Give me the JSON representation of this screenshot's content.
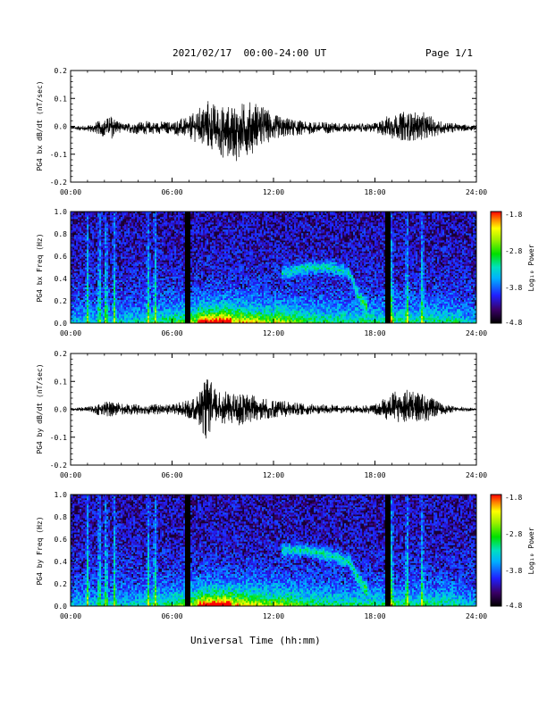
{
  "header": {
    "title": "2021/02/17  00:00-24:00 UT",
    "page": "Page 1/1"
  },
  "xlabel": "Universal Time (hh:mm)",
  "colorbar": {
    "label": "Log₁₀ Power",
    "ticks": [
      "-1.8",
      "-2.8",
      "-3.8",
      "-4.8"
    ],
    "range": [
      -4.8,
      -1.8
    ]
  },
  "chart_data": [
    {
      "type": "line",
      "ylabel": "PG4 bx dB/dt (nT/sec)",
      "xlim": [
        0,
        24
      ],
      "ylim": [
        -0.2,
        0.2
      ],
      "xticks": [
        "00:00",
        "06:00",
        "12:00",
        "18:00",
        "24:00"
      ],
      "yticks": [
        "0.2",
        "0.1",
        "0.0",
        "-0.1",
        "-0.2"
      ],
      "envelope": {
        "x_hours": [
          0,
          1,
          2,
          2.5,
          3,
          4,
          5,
          6,
          7,
          7.5,
          8,
          8.5,
          9,
          10,
          11,
          12,
          13,
          14,
          15,
          16,
          17,
          18,
          19,
          20,
          21,
          22,
          23,
          24
        ],
        "upper": [
          0.0,
          0.005,
          0.03,
          0.05,
          0.01,
          0.02,
          0.02,
          0.02,
          0.04,
          0.06,
          0.11,
          0.09,
          0.08,
          0.09,
          0.1,
          0.05,
          0.03,
          0.02,
          0.02,
          0.015,
          0.01,
          0.015,
          0.05,
          0.06,
          0.05,
          0.02,
          0.01,
          0.005
        ],
        "lower": [
          -0.01,
          -0.02,
          -0.04,
          -0.05,
          -0.02,
          -0.03,
          -0.03,
          -0.03,
          -0.05,
          -0.06,
          -0.11,
          -0.1,
          -0.12,
          -0.13,
          -0.09,
          -0.06,
          -0.04,
          -0.03,
          -0.03,
          -0.025,
          -0.02,
          -0.025,
          -0.05,
          -0.06,
          -0.05,
          -0.03,
          -0.02,
          -0.015
        ]
      }
    },
    {
      "type": "heatmap",
      "ylabel": "PG4 bx Freq (Hz)",
      "xlim": [
        0,
        24
      ],
      "ylim": [
        0,
        1.0
      ],
      "xticks": [
        "00:00",
        "06:00",
        "12:00",
        "18:00",
        "24:00"
      ],
      "yticks": [
        "1.0",
        "0.8",
        "0.6",
        "0.4",
        "0.2",
        "0.0"
      ],
      "gaps_hours": [
        6.9,
        18.8
      ],
      "bursts_hours": [
        1.0,
        1.7,
        2.1,
        2.6,
        4.6,
        5.0,
        19.0,
        19.9,
        20.8
      ],
      "emission_band": {
        "x_hours": [
          12.5,
          14,
          15.5,
          16.5,
          17,
          17.5
        ],
        "freq_hz": [
          0.45,
          0.5,
          0.5,
          0.45,
          0.25,
          0.15
        ]
      }
    },
    {
      "type": "line",
      "ylabel": "PG4 by dB/dt (nT/sec)",
      "xlim": [
        0,
        24
      ],
      "ylim": [
        -0.2,
        0.2
      ],
      "xticks": [
        "00:00",
        "06:00",
        "12:00",
        "18:00",
        "24:00"
      ],
      "yticks": [
        "0.2",
        "0.1",
        "0.0",
        "-0.1",
        "-0.2"
      ],
      "envelope": {
        "x_hours": [
          0,
          1,
          2,
          2.5,
          3,
          4,
          5,
          6,
          7,
          7.5,
          8,
          8.5,
          9,
          10,
          11,
          12,
          13,
          14,
          15,
          16,
          17,
          18,
          19,
          20,
          21,
          22,
          23,
          24
        ],
        "upper": [
          0.005,
          0.01,
          0.03,
          0.04,
          0.02,
          0.02,
          0.02,
          0.02,
          0.04,
          0.06,
          0.13,
          0.09,
          0.07,
          0.06,
          0.06,
          0.04,
          0.03,
          0.02,
          0.02,
          0.015,
          0.015,
          0.02,
          0.07,
          0.08,
          0.06,
          0.02,
          0.01,
          0.005
        ],
        "lower": [
          -0.005,
          -0.01,
          -0.03,
          -0.03,
          -0.02,
          -0.02,
          -0.02,
          -0.02,
          -0.04,
          -0.06,
          -0.12,
          -0.08,
          -0.06,
          -0.06,
          -0.05,
          -0.04,
          -0.03,
          -0.02,
          -0.02,
          -0.015,
          -0.015,
          -0.02,
          -0.05,
          -0.06,
          -0.05,
          -0.02,
          -0.01,
          -0.005
        ]
      }
    },
    {
      "type": "heatmap",
      "ylabel": "PG4 by Freq (Hz)",
      "xlim": [
        0,
        24
      ],
      "ylim": [
        0,
        1.0
      ],
      "xticks": [
        "00:00",
        "06:00",
        "12:00",
        "18:00",
        "24:00"
      ],
      "yticks": [
        "1.0",
        "0.8",
        "0.6",
        "0.4",
        "0.2",
        "0.0"
      ],
      "gaps_hours": [
        6.9,
        18.8
      ],
      "bursts_hours": [
        1.0,
        1.7,
        2.1,
        2.6,
        4.6,
        5.0,
        19.0,
        19.9,
        20.8
      ],
      "emission_band": {
        "x_hours": [
          12.5,
          14,
          15.5,
          16.5,
          17,
          17.5
        ],
        "freq_hz": [
          0.5,
          0.5,
          0.45,
          0.4,
          0.25,
          0.15
        ]
      }
    }
  ]
}
